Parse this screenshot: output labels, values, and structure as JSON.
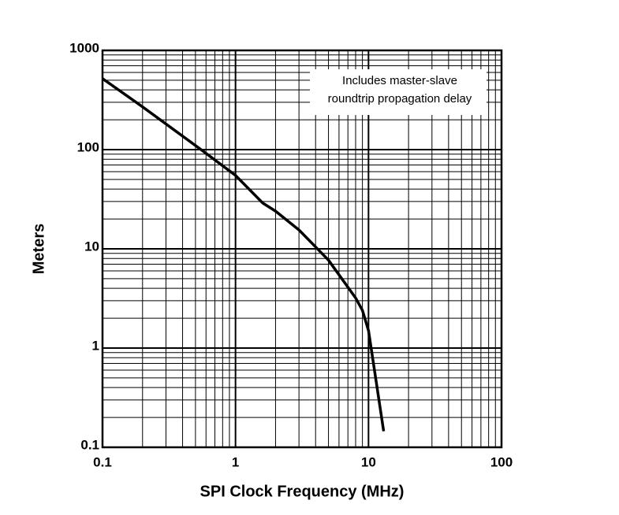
{
  "chart_data": {
    "type": "line",
    "x_label": "SPI Clock Frequency (MHz)",
    "y_label": "Meters",
    "annotation": [
      "Includes master-slave",
      "roundtrip propagation delay"
    ],
    "x": [
      0.1,
      0.2,
      0.5,
      1,
      1.6,
      2,
      3,
      5,
      8,
      9,
      10,
      13
    ],
    "series": [
      {
        "color": "#000000",
        "values": [
          520,
          270,
          110,
          55,
          29,
          24,
          15.5,
          7.7,
          3.2,
          2.4,
          1.5,
          0.145
        ]
      }
    ],
    "xlim": [
      0.1,
      100
    ],
    "ylim": [
      0.1,
      1000
    ],
    "xticks": [
      0.1,
      1,
      10,
      100
    ],
    "yticks": [
      0.1,
      1,
      10,
      100,
      1000
    ],
    "xscale": "log",
    "yscale": "log",
    "grid": true
  }
}
